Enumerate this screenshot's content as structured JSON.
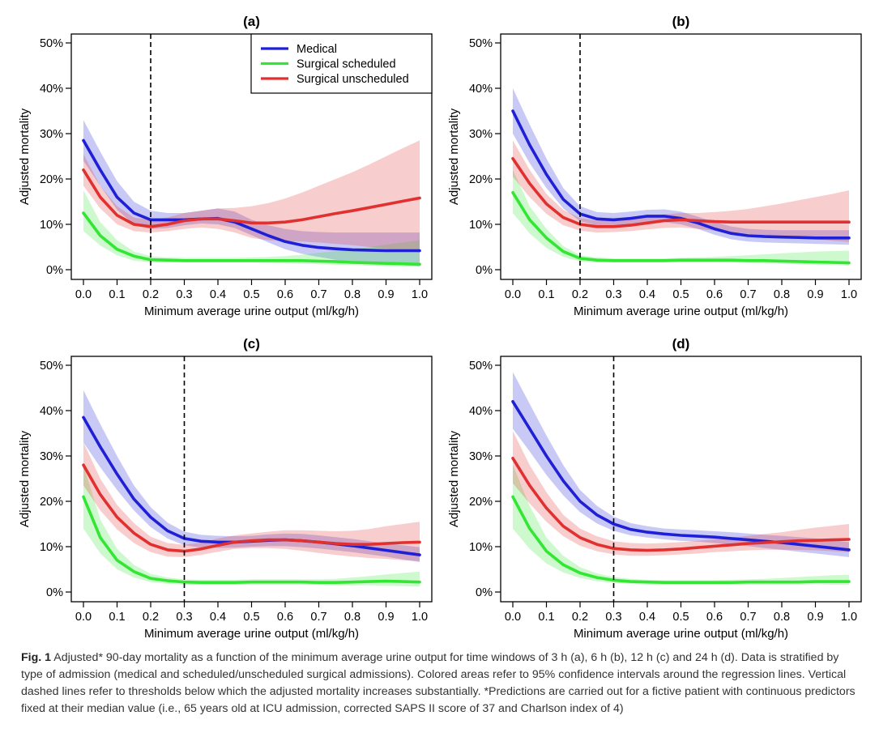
{
  "colors": {
    "medical": "#1f1fd6",
    "surgical_scheduled": "#33e633",
    "surgical_unscheduled": "#e03030"
  },
  "chart_data": [
    {
      "type": "line",
      "title": "(a)",
      "xlabel": "Minimum average urine output (ml/kg/h)",
      "ylabel": "Adjusted mortality",
      "xlim": [
        0,
        1
      ],
      "ylim": [
        0,
        50
      ],
      "x_ticks": [
        "0.0",
        "0.1",
        "0.2",
        "0.3",
        "0.4",
        "0.5",
        "0.6",
        "0.7",
        "0.8",
        "0.9",
        "1.0"
      ],
      "y_ticks": [
        "0%",
        "10%",
        "20%",
        "30%",
        "40%",
        "50%"
      ],
      "threshold": 0.2,
      "legend_position": "top-right",
      "x": [
        0,
        0.05,
        0.1,
        0.15,
        0.2,
        0.25,
        0.3,
        0.35,
        0.4,
        0.45,
        0.5,
        0.55,
        0.6,
        0.65,
        0.7,
        0.75,
        0.8,
        0.85,
        0.9,
        0.95,
        1.0
      ],
      "series": [
        {
          "name": "Medical",
          "values": [
            28.5,
            22,
            16,
            12.5,
            11,
            11,
            11,
            11.2,
            11.3,
            10.5,
            9,
            7.5,
            6.2,
            5.4,
            4.9,
            4.6,
            4.4,
            4.3,
            4.2,
            4.2,
            4.2
          ],
          "lower": [
            24,
            18.5,
            13.2,
            10,
            9,
            9.2,
            9.8,
            10.2,
            10,
            9.2,
            7.6,
            6,
            4.5,
            3.5,
            2.8,
            2.2,
            1.8,
            1.5,
            1.2,
            1,
            0.8
          ],
          "upper": [
            33,
            26,
            19.5,
            15,
            13,
            12.5,
            12.5,
            13,
            13.5,
            12.8,
            11,
            9.8,
            9,
            8.5,
            8.3,
            8.2,
            8.2,
            8.2,
            8.2,
            8.2,
            8.2
          ]
        },
        {
          "name": "Surgical scheduled",
          "values": [
            12.5,
            7.5,
            4.5,
            3,
            2.2,
            2.1,
            2,
            2,
            2,
            2,
            2,
            2,
            2,
            2,
            1.9,
            1.8,
            1.6,
            1.5,
            1.4,
            1.3,
            1.2
          ],
          "lower": [
            8.5,
            5.3,
            3.2,
            2,
            1.6,
            1.6,
            1.6,
            1.6,
            1.6,
            1.6,
            1.6,
            1.5,
            1.4,
            1.3,
            1.2,
            1.1,
            1,
            0.9,
            0.8,
            0.7,
            0.6
          ],
          "upper": [
            17.5,
            10.5,
            6.5,
            4,
            3,
            2.7,
            2.6,
            2.6,
            2.6,
            2.6,
            2.7,
            2.8,
            3,
            3.3,
            3.7,
            4.1,
            4.5,
            5,
            5.5,
            6,
            6.5
          ]
        },
        {
          "name": "Surgical unscheduled",
          "values": [
            22,
            16,
            12,
            10,
            9.5,
            10,
            10.8,
            11.2,
            11.2,
            10.8,
            10.3,
            10.3,
            10.5,
            11,
            11.7,
            12.4,
            13,
            13.7,
            14.4,
            15.1,
            15.8
          ],
          "lower": [
            18.5,
            13.5,
            10,
            8.5,
            8.2,
            8.5,
            9,
            9.3,
            9,
            8.2,
            7,
            6.5,
            6.3,
            6.2,
            6,
            5.7,
            5.4,
            5,
            4.6,
            4.2,
            3.8
          ],
          "upper": [
            25.5,
            18.5,
            14,
            11.5,
            11,
            11.5,
            12.5,
            13,
            13.5,
            13.6,
            14,
            14.7,
            15.7,
            17,
            18.5,
            20,
            21.5,
            23.2,
            25,
            26.8,
            28.5
          ]
        }
      ]
    },
    {
      "type": "line",
      "title": "(b)",
      "xlabel": "Minimum average urine output (ml/kg/h)",
      "ylabel": "Adjusted mortality",
      "xlim": [
        0,
        1
      ],
      "ylim": [
        0,
        50
      ],
      "x_ticks": [
        "0.0",
        "0.1",
        "0.2",
        "0.3",
        "0.4",
        "0.5",
        "0.6",
        "0.7",
        "0.8",
        "0.9",
        "1.0"
      ],
      "y_ticks": [
        "0%",
        "10%",
        "20%",
        "30%",
        "40%",
        "50%"
      ],
      "threshold": 0.2,
      "x": [
        0,
        0.05,
        0.1,
        0.15,
        0.2,
        0.25,
        0.3,
        0.35,
        0.4,
        0.45,
        0.5,
        0.55,
        0.6,
        0.65,
        0.7,
        0.75,
        0.8,
        0.85,
        0.9,
        0.95,
        1.0
      ],
      "series": [
        {
          "name": "Medical",
          "values": [
            35,
            27.5,
            21,
            15.5,
            12.3,
            11.2,
            11,
            11.3,
            11.8,
            11.8,
            11.3,
            10.3,
            9,
            8,
            7.5,
            7.3,
            7.2,
            7.1,
            7,
            7,
            7
          ],
          "lower": [
            30,
            23.5,
            18,
            13.5,
            10.7,
            9.8,
            9.8,
            10,
            10.5,
            10.5,
            10,
            9,
            7.7,
            6.7,
            6.2,
            6,
            5.9,
            5.8,
            5.7,
            5.6,
            5.5
          ],
          "upper": [
            40,
            32,
            24.5,
            18,
            14,
            12.7,
            12.5,
            12.8,
            13.2,
            13.3,
            12.8,
            11.7,
            10.5,
            9.5,
            9,
            8.8,
            8.7,
            8.7,
            8.7,
            8.7,
            8.7
          ]
        },
        {
          "name": "Surgical scheduled",
          "values": [
            17,
            11,
            7,
            4,
            2.5,
            2.1,
            2,
            2,
            2,
            2,
            2.1,
            2.1,
            2.1,
            2.1,
            2,
            2,
            1.9,
            1.8,
            1.7,
            1.6,
            1.5
          ],
          "lower": [
            12.5,
            8,
            4.8,
            2.8,
            1.8,
            1.6,
            1.6,
            1.6,
            1.6,
            1.6,
            1.7,
            1.7,
            1.7,
            1.6,
            1.5,
            1.4,
            1.3,
            1.2,
            1.1,
            1,
            0.9
          ],
          "upper": [
            22,
            14,
            9,
            5.2,
            3.2,
            2.7,
            2.5,
            2.5,
            2.5,
            2.5,
            2.6,
            2.7,
            2.8,
            3,
            3.2,
            3.4,
            3.6,
            3.8,
            4,
            4.1,
            4.2
          ]
        },
        {
          "name": "Surgical unscheduled",
          "values": [
            24.5,
            19,
            14.5,
            11.5,
            10,
            9.5,
            9.5,
            9.8,
            10.3,
            10.8,
            11,
            10.8,
            10.6,
            10.5,
            10.5,
            10.5,
            10.5,
            10.5,
            10.5,
            10.5,
            10.5
          ],
          "lower": [
            20.5,
            16,
            12.3,
            9.8,
            8.6,
            8.2,
            8.3,
            8.5,
            8.9,
            9.2,
            9.3,
            9,
            8.6,
            8.2,
            7.9,
            7.6,
            7.3,
            7,
            6.7,
            6.4,
            6.1
          ],
          "upper": [
            28.5,
            22,
            16.7,
            13.2,
            11.4,
            10.8,
            10.8,
            11.1,
            11.7,
            12.2,
            12.5,
            12.5,
            12.7,
            13,
            13.4,
            14,
            14.6,
            15.3,
            16,
            16.7,
            17.5
          ]
        }
      ]
    },
    {
      "type": "line",
      "title": "(c)",
      "xlabel": "Minimum average urine output (ml/kg/h)",
      "ylabel": "Adjusted mortality",
      "xlim": [
        0,
        1
      ],
      "ylim": [
        0,
        50
      ],
      "x_ticks": [
        "0.0",
        "0.1",
        "0.2",
        "0.3",
        "0.4",
        "0.5",
        "0.6",
        "0.7",
        "0.8",
        "0.9",
        "1.0"
      ],
      "y_ticks": [
        "0%",
        "10%",
        "20%",
        "30%",
        "40%",
        "50%"
      ],
      "threshold": 0.3,
      "x": [
        0,
        0.05,
        0.1,
        0.15,
        0.2,
        0.25,
        0.3,
        0.35,
        0.4,
        0.45,
        0.5,
        0.55,
        0.6,
        0.65,
        0.7,
        0.75,
        0.8,
        0.85,
        0.9,
        0.95,
        1.0
      ],
      "series": [
        {
          "name": "Medical",
          "values": [
            38.5,
            32,
            26,
            20.5,
            16.5,
            13.5,
            11.8,
            11.2,
            11,
            11,
            11.2,
            11.4,
            11.5,
            11.3,
            11,
            10.6,
            10.2,
            9.7,
            9.2,
            8.7,
            8.2
          ],
          "lower": [
            33,
            27.5,
            22.5,
            18,
            14.3,
            11.8,
            10.3,
            9.8,
            9.7,
            9.8,
            10,
            10.1,
            10.1,
            9.9,
            9.6,
            9.2,
            8.8,
            8.3,
            7.8,
            7.2,
            6.6
          ],
          "upper": [
            44.5,
            37,
            30,
            23.5,
            18.7,
            15.3,
            13.3,
            12.6,
            12.4,
            12.3,
            12.4,
            12.7,
            12.9,
            12.8,
            12.5,
            12.1,
            11.7,
            11.2,
            10.7,
            10.3,
            9.9
          ]
        },
        {
          "name": "Surgical scheduled",
          "values": [
            21,
            12,
            7,
            4.5,
            3,
            2.5,
            2.2,
            2.1,
            2.1,
            2.1,
            2.2,
            2.2,
            2.2,
            2.2,
            2.1,
            2.1,
            2.2,
            2.3,
            2.4,
            2.3,
            2.2
          ],
          "lower": [
            14,
            8.5,
            5,
            3.2,
            2.2,
            1.8,
            1.6,
            1.6,
            1.6,
            1.6,
            1.7,
            1.7,
            1.7,
            1.7,
            1.6,
            1.5,
            1.5,
            1.5,
            1.4,
            1.3,
            1.2
          ],
          "upper": [
            28,
            16,
            9.5,
            6,
            4,
            3.2,
            2.8,
            2.7,
            2.7,
            2.7,
            2.8,
            2.8,
            2.8,
            2.8,
            2.8,
            2.9,
            3.2,
            3.5,
            3.9,
            4.2,
            4.5
          ]
        },
        {
          "name": "Surgical unscheduled",
          "values": [
            28,
            21.5,
            16.5,
            13,
            10.5,
            9.3,
            9,
            9.5,
            10.3,
            11,
            11.3,
            11.5,
            11.5,
            11.3,
            11,
            10.7,
            10.5,
            10.5,
            10.7,
            10.9,
            11
          ],
          "lower": [
            23.5,
            18,
            13.8,
            10.8,
            8.8,
            7.8,
            7.7,
            8.2,
            8.9,
            9.5,
            9.7,
            9.7,
            9.5,
            9.1,
            8.6,
            8.2,
            7.8,
            7.5,
            7.3,
            7,
            6.8
          ],
          "upper": [
            33,
            25,
            19.2,
            15.2,
            12.2,
            10.8,
            10.4,
            10.9,
            11.8,
            12.5,
            12.9,
            13.3,
            13.6,
            13.6,
            13.5,
            13.4,
            13.5,
            13.9,
            14.5,
            15,
            15.5
          ]
        }
      ]
    },
    {
      "type": "line",
      "title": "(d)",
      "xlabel": "Minimum average urine output (ml/kg/h)",
      "ylabel": "Adjusted mortality",
      "xlim": [
        0,
        1
      ],
      "ylim": [
        0,
        50
      ],
      "x_ticks": [
        "0.0",
        "0.1",
        "0.2",
        "0.3",
        "0.4",
        "0.5",
        "0.6",
        "0.7",
        "0.8",
        "0.9",
        "1.0"
      ],
      "y_ticks": [
        "0%",
        "10%",
        "20%",
        "30%",
        "40%",
        "50%"
      ],
      "threshold": 0.3,
      "x": [
        0,
        0.05,
        0.1,
        0.15,
        0.2,
        0.25,
        0.3,
        0.35,
        0.4,
        0.45,
        0.5,
        0.55,
        0.6,
        0.65,
        0.7,
        0.75,
        0.8,
        0.85,
        0.9,
        0.95,
        1.0
      ],
      "series": [
        {
          "name": "Medical",
          "values": [
            42,
            36,
            30,
            24.5,
            20,
            17,
            15,
            13.8,
            13.2,
            12.8,
            12.5,
            12.3,
            12.1,
            11.8,
            11.5,
            11.2,
            10.9,
            10.5,
            10.1,
            9.7,
            9.3
          ],
          "lower": [
            36,
            31,
            25.8,
            21.3,
            17.6,
            15.1,
            13.5,
            12.5,
            12,
            11.6,
            11.3,
            11.1,
            10.8,
            10.5,
            10.1,
            9.7,
            9.3,
            8.9,
            8.5,
            8.1,
            7.7
          ],
          "upper": [
            48.5,
            41.5,
            34.5,
            28,
            22.5,
            19,
            16.6,
            15.2,
            14.5,
            14,
            13.8,
            13.6,
            13.4,
            13.2,
            12.9,
            12.6,
            12.4,
            12.1,
            11.8,
            11.4,
            11
          ]
        },
        {
          "name": "Surgical scheduled",
          "values": [
            21,
            14,
            9,
            6,
            4.2,
            3.2,
            2.6,
            2.3,
            2.2,
            2.1,
            2.1,
            2.1,
            2.1,
            2.1,
            2.2,
            2.2,
            2.2,
            2.2,
            2.3,
            2.3,
            2.3
          ],
          "lower": [
            14,
            9.5,
            6.3,
            4.3,
            3.1,
            2.4,
            2,
            1.8,
            1.7,
            1.7,
            1.7,
            1.7,
            1.7,
            1.7,
            1.7,
            1.7,
            1.7,
            1.7,
            1.7,
            1.6,
            1.6
          ],
          "upper": [
            28,
            19,
            12,
            8,
            5.5,
            4.1,
            3.3,
            2.9,
            2.7,
            2.6,
            2.6,
            2.6,
            2.6,
            2.7,
            2.8,
            2.9,
            3.1,
            3.3,
            3.5,
            3.7,
            3.8
          ]
        },
        {
          "name": "Surgical unscheduled",
          "values": [
            29.5,
            23.5,
            18.5,
            14.5,
            12,
            10.5,
            9.6,
            9.3,
            9.2,
            9.3,
            9.5,
            9.8,
            10.1,
            10.4,
            10.7,
            10.9,
            11.1,
            11.3,
            11.4,
            11.5,
            11.6
          ],
          "lower": [
            24,
            19.5,
            15.5,
            12.3,
            10.2,
            9,
            8.3,
            8,
            8,
            8.1,
            8.3,
            8.5,
            8.8,
            9,
            9.2,
            9.3,
            9.3,
            9.3,
            9.2,
            9,
            8.8
          ],
          "upper": [
            35.5,
            28,
            22,
            17,
            14,
            12.3,
            11.2,
            10.8,
            10.7,
            10.8,
            11,
            11.3,
            11.6,
            12,
            12.4,
            12.8,
            13.2,
            13.7,
            14.2,
            14.6,
            15
          ]
        }
      ]
    }
  ],
  "caption": {
    "label": "Fig. 1",
    "text": "Adjusted* 90-day mortality as a function of the minimum average urine output for time windows of 3 h (a), 6 h (b), 12 h (c) and 24 h (d). Data is stratified by type of admission (medical and scheduled/unscheduled surgical admissions). Colored areas refer to 95% confidence intervals around the regression lines. Vertical dashed lines refer to thresholds below which the adjusted mortality increases substantially. *Predictions are carried out for a fictive patient with continuous predictors fixed at their median value (i.e., 65 years old at ICU admission, corrected SAPS II score of 37 and Charlson index of 4)"
  }
}
